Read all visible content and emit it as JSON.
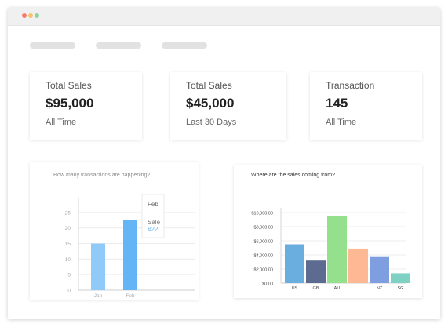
{
  "window": {
    "dots": [
      {
        "name": "close",
        "color": "#f47a6f"
      },
      {
        "name": "minimize",
        "color": "#f5c36b"
      },
      {
        "name": "maximize",
        "color": "#8fd49a"
      }
    ]
  },
  "stats": [
    {
      "label": "Total Sales",
      "value": "$95,000",
      "sub": "All Time"
    },
    {
      "label": "Total Sales",
      "value": "$45,000",
      "sub": "Last 30 Days"
    },
    {
      "label": "Transaction",
      "value": "145",
      "sub": "All Time"
    }
  ],
  "transactions_chart": {
    "title": "How many transactions are happening?",
    "tooltip": {
      "month": "Feb",
      "label": "Sale",
      "value": "#22"
    }
  },
  "sales_chart": {
    "title": "Where are the sales coming from?"
  },
  "chart_data": [
    {
      "type": "bar",
      "title": "How many transactions are happening?",
      "categories": [
        "Jan",
        "Feb"
      ],
      "values": [
        15,
        22.5
      ],
      "y_ticks": [
        "0",
        "5",
        "10",
        "15",
        "20",
        "25"
      ],
      "ylim": [
        0,
        28
      ],
      "grid": true,
      "colors": [
        "#90caf9",
        "#64b5f6"
      ]
    },
    {
      "type": "bar",
      "title": "Where are the sales coming from?",
      "categories": [
        "US",
        "GB",
        "AU",
        "",
        "NZ",
        "SG"
      ],
      "values": [
        5500,
        3200,
        9500,
        4900,
        3700,
        1400
      ],
      "y_ticks": [
        "$0.00",
        "$2,000.00",
        "$4,000.00",
        "$6,000.00",
        "$8,000.00",
        "$10,000.00"
      ],
      "ylim": [
        0,
        10000
      ],
      "grid": true,
      "colors": [
        "#6aaee0",
        "#5c6b8f",
        "#95e08c",
        "#ffb894",
        "#7f9ee0",
        "#7fd1c4"
      ]
    }
  ]
}
